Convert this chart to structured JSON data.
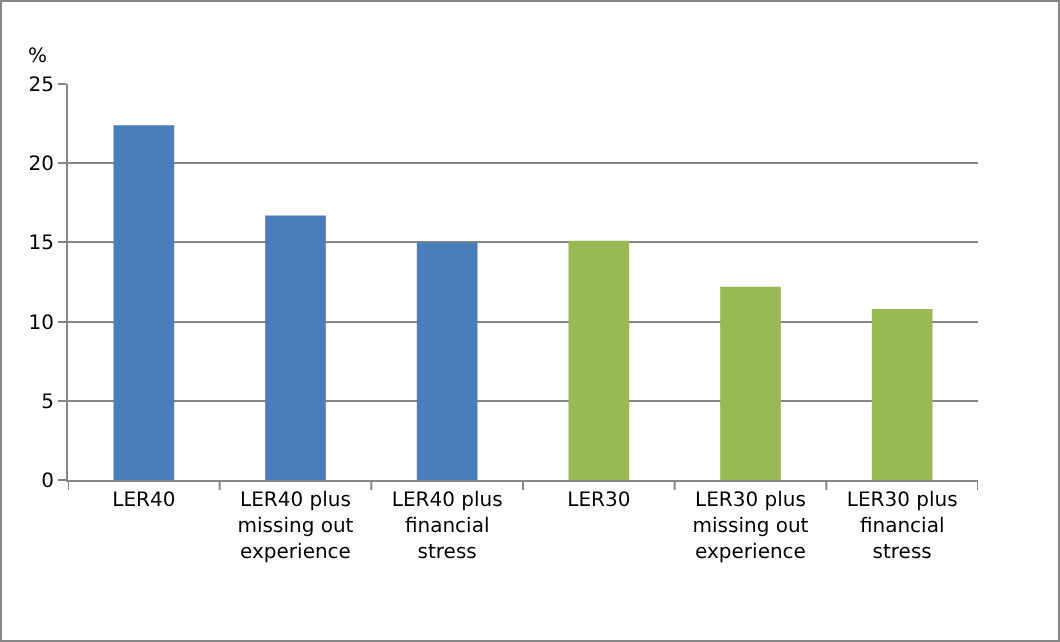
{
  "chart_data": {
    "type": "bar",
    "ylabel": "%",
    "categories": [
      "LER40",
      "LER40 plus missing out experience",
      "LER40 plus financial stress",
      "LER30",
      "LER30 plus missing out experience",
      "LER30 plus financial stress"
    ],
    "values": [
      22.4,
      16.7,
      15.0,
      15.1,
      12.2,
      10.8
    ],
    "colors": [
      "#4a7ebb",
      "#4a7ebb",
      "#4a7ebb",
      "#98b954",
      "#98b954",
      "#98b954"
    ],
    "ylim": [
      0,
      25
    ],
    "yticks": [
      0,
      5,
      10,
      15,
      20,
      25
    ],
    "grid": "y"
  }
}
